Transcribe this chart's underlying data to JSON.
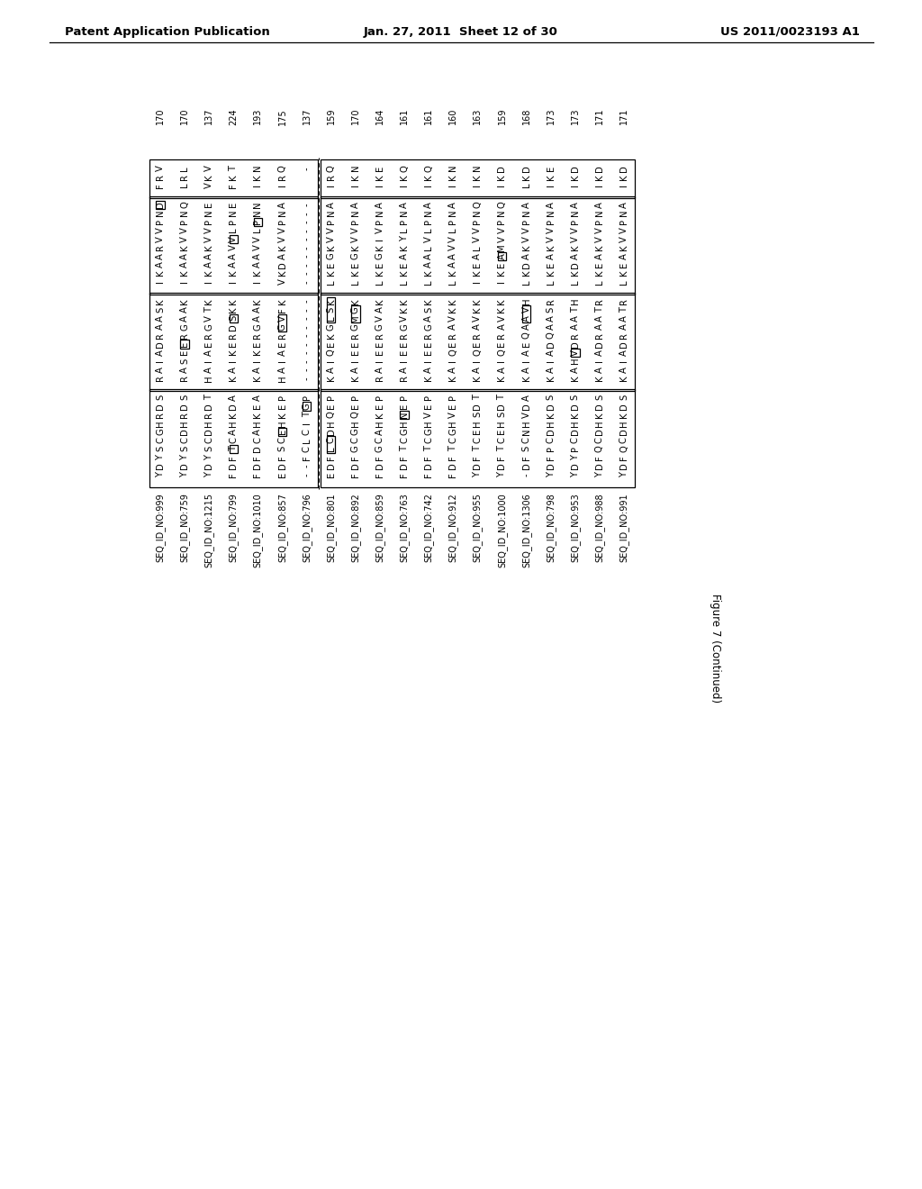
{
  "header_left": "Patent Application Publication",
  "header_center": "Jan. 27, 2011  Sheet 12 of 30",
  "header_right": "US 2011/0023193 A1",
  "figure_label": "Figure 7 (Continued)",
  "numbers": [
    "170",
    "170",
    "137",
    "224",
    "193",
    "175",
    "137",
    "159",
    "170",
    "164",
    "161",
    "161",
    "160",
    "163",
    "159",
    "168",
    "173",
    "173",
    "171",
    "171"
  ],
  "seq_ids": [
    "SEQ_ID_NO:999",
    "SEQ_ID_NO:759",
    "SEQ_ID_NO:1215",
    "SEQ_ID_NO:799",
    "SEQ_ID_NO:1010",
    "SEQ_ID_NO:857",
    "SEQ_ID_NO:796",
    "SEQ_ID_NO:801",
    "SEQ_ID_NO:892",
    "SEQ_ID_NO:859",
    "SEQ_ID_NO:763",
    "SEQ_ID_NO:742",
    "SEQ_ID_NO:912",
    "SEQ_ID_NO:955",
    "SEQ_ID_NO:1000",
    "SEQ_ID_NO:1306",
    "SEQ_ID_NO:798",
    "SEQ_ID_NO:953",
    "SEQ_ID_NO:988",
    "SEQ_ID_NO:991"
  ],
  "col4_seqs": [
    "VRF",
    "LRL",
    "VKV",
    "TKF",
    "NKI",
    "QRI",
    "-",
    "QRI",
    "NKI",
    "EKI",
    "QKI",
    "QKI",
    "NKI",
    "NKI",
    "DKI",
    "DKL",
    "EKI",
    "DKI",
    "DKI",
    "DKI"
  ],
  "col3_seqs": [
    "DNPVVRAAKI",
    "QNPVVKAAKI",
    "ENPVVKAAKI",
    "ENPLVVAAKI",
    "NNPLVVAAKI",
    "ANPVVKADKV",
    "----------",
    "ANPVVKGEKL",
    "ANPVVKGEKL",
    "ANPVIKGEKL",
    "ANPLYKAEKL",
    "ANPLVLAAKL",
    "ANPLVVAAKL",
    "QNPVVLAEKI",
    "QNPVVMAEKI",
    "ANPVVKADKL",
    "ANPVVKAEKL",
    "ANPVVKADKL",
    "ANPVVKAEKL",
    "ANPVVKAEKL"
  ],
  "col2_seqs": [
    "KSAARDAIAR",
    "KAAGREESAR",
    "KTVGREAIAH",
    "KKSDREKIAK",
    "KAAGREKIAK",
    "KFVGREAIAH",
    "----------",
    "KSLGKEQIAK",
    "KGMGREEIAK",
    "KAVGREEIAR",
    "KKVGREEIAR",
    "KSAGREEIAK",
    "KKVAREQIAK",
    "KKVAREQIAK",
    "KKVAREQIAK",
    "HVAAQEAIAK",
    "RSAAQDAIAK",
    "HTAARDVHAK",
    "RTAARDAIAK",
    "RTAARDAIAK"
  ],
  "col1_seqs": [
    "SDRHGCSYDY",
    "SDRHDCSYDY",
    "TDRHDCSYDY",
    "ADKHACTFDF",
    "AEKHACDFDF",
    "PEKHECSFDE",
    "PGTICLCF--",
    "PEQHDCLFDE",
    "PEQHGCGFDF",
    "PEKHACGFDF",
    "PENHGCTFDF",
    "PEVHGCTFDF",
    "PEVHGCTFDF",
    "TDSHECTFDY",
    "TDSHECTFDY",
    "ADVHNCSFD-",
    "SDKHDCPFDY",
    "SDKHDCPYDY",
    "SDKHDCQFDY",
    "SDKHDCQFDY"
  ],
  "bg": "#ffffff",
  "fg": "#000000"
}
